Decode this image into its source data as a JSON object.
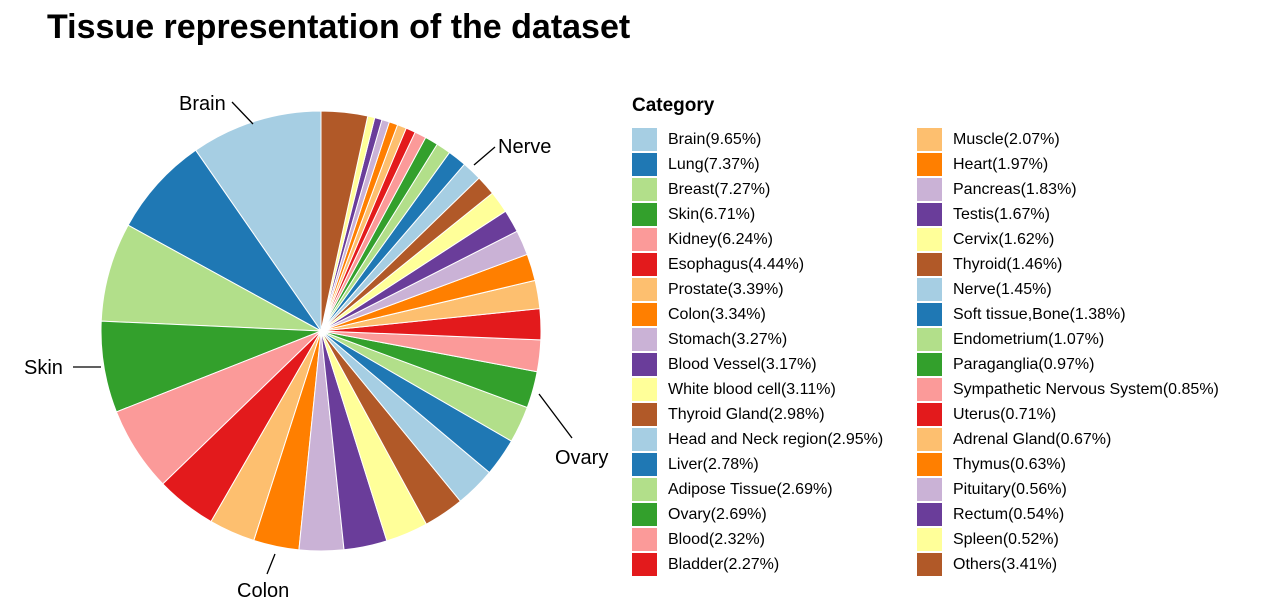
{
  "chart_data": {
    "type": "pie",
    "title": "Tissue representation of the dataset",
    "legend_title": "Category",
    "legend_placement": "right",
    "slices": [
      {
        "name": "Brain",
        "label": "Brain(9.65%)",
        "value": 9.65,
        "color": "#a6cee3"
      },
      {
        "name": "Lung",
        "label": "Lung(7.37%)",
        "value": 7.37,
        "color": "#1f78b4"
      },
      {
        "name": "Breast",
        "label": "Breast(7.27%)",
        "value": 7.27,
        "color": "#b2df8a"
      },
      {
        "name": "Skin",
        "label": "Skin(6.71%)",
        "value": 6.71,
        "color": "#33a02c"
      },
      {
        "name": "Kidney",
        "label": "Kidney(6.24%)",
        "value": 6.24,
        "color": "#fb9a99"
      },
      {
        "name": "Esophagus",
        "label": "Esophagus(4.44%)",
        "value": 4.44,
        "color": "#e31a1c"
      },
      {
        "name": "Prostate",
        "label": "Prostate(3.39%)",
        "value": 3.39,
        "color": "#fdbf6f"
      },
      {
        "name": "Colon",
        "label": "Colon(3.34%)",
        "value": 3.34,
        "color": "#ff7f00"
      },
      {
        "name": "Stomach",
        "label": "Stomach(3.27%)",
        "value": 3.27,
        "color": "#cab2d6"
      },
      {
        "name": "Blood Vessel",
        "label": "Blood Vessel(3.17%)",
        "value": 3.17,
        "color": "#6a3d9a"
      },
      {
        "name": "White blood cell",
        "label": "White blood cell(3.11%)",
        "value": 3.11,
        "color": "#ffff99"
      },
      {
        "name": "Thyroid Gland",
        "label": "Thyroid Gland(2.98%)",
        "value": 2.98,
        "color": "#b15928"
      },
      {
        "name": "Head and Neck region",
        "label": "Head and Neck region(2.95%)",
        "value": 2.95,
        "color": "#a6cee3"
      },
      {
        "name": "Liver",
        "label": "Liver(2.78%)",
        "value": 2.78,
        "color": "#1f78b4"
      },
      {
        "name": "Adipose Tissue",
        "label": "Adipose Tissue(2.69%)",
        "value": 2.69,
        "color": "#b2df8a"
      },
      {
        "name": "Ovary",
        "label": "Ovary(2.69%)",
        "value": 2.69,
        "color": "#33a02c"
      },
      {
        "name": "Blood",
        "label": "Blood(2.32%)",
        "value": 2.32,
        "color": "#fb9a99"
      },
      {
        "name": "Bladder",
        "label": "Bladder(2.27%)",
        "value": 2.27,
        "color": "#e31a1c"
      },
      {
        "name": "Muscle",
        "label": "Muscle(2.07%)",
        "value": 2.07,
        "color": "#fdbf6f"
      },
      {
        "name": "Heart",
        "label": "Heart(1.97%)",
        "value": 1.97,
        "color": "#ff7f00"
      },
      {
        "name": "Pancreas",
        "label": "Pancreas(1.83%)",
        "value": 1.83,
        "color": "#cab2d6"
      },
      {
        "name": "Testis",
        "label": "Testis(1.67%)",
        "value": 1.67,
        "color": "#6a3d9a"
      },
      {
        "name": "Cervix",
        "label": "Cervix(1.62%)",
        "value": 1.62,
        "color": "#ffff99"
      },
      {
        "name": "Thyroid",
        "label": "Thyroid(1.46%)",
        "value": 1.46,
        "color": "#b15928"
      },
      {
        "name": "Nerve",
        "label": "Nerve(1.45%)",
        "value": 1.45,
        "color": "#a6cee3"
      },
      {
        "name": "Soft tissue,Bone",
        "label": "Soft tissue,Bone(1.38%)",
        "value": 1.38,
        "color": "#1f78b4"
      },
      {
        "name": "Endometrium",
        "label": "Endometrium(1.07%)",
        "value": 1.07,
        "color": "#b2df8a"
      },
      {
        "name": "Paraganglia",
        "label": "Paraganglia(0.97%)",
        "value": 0.97,
        "color": "#33a02c"
      },
      {
        "name": "Sympathetic Nervous System",
        "label": "Sympathetic Nervous System(0.85%)",
        "value": 0.85,
        "color": "#fb9a99"
      },
      {
        "name": "Uterus",
        "label": "Uterus(0.71%)",
        "value": 0.71,
        "color": "#e31a1c"
      },
      {
        "name": "Adrenal Gland",
        "label": "Adrenal Gland(0.67%)",
        "value": 0.67,
        "color": "#fdbf6f"
      },
      {
        "name": "Thymus",
        "label": "Thymus(0.63%)",
        "value": 0.63,
        "color": "#ff7f00"
      },
      {
        "name": "Pituitary",
        "label": "Pituitary(0.56%)",
        "value": 0.56,
        "color": "#cab2d6"
      },
      {
        "name": "Rectum",
        "label": "Rectum(0.54%)",
        "value": 0.54,
        "color": "#6a3d9a"
      },
      {
        "name": "Spleen",
        "label": "Spleen(0.52%)",
        "value": 0.52,
        "color": "#ffff99"
      },
      {
        "name": "Others",
        "label": "Others(3.41%)",
        "value": 3.41,
        "color": "#b15928"
      }
    ],
    "annotations": [
      "Brain",
      "Nerve",
      "Skin",
      "Ovary",
      "Colon"
    ]
  }
}
